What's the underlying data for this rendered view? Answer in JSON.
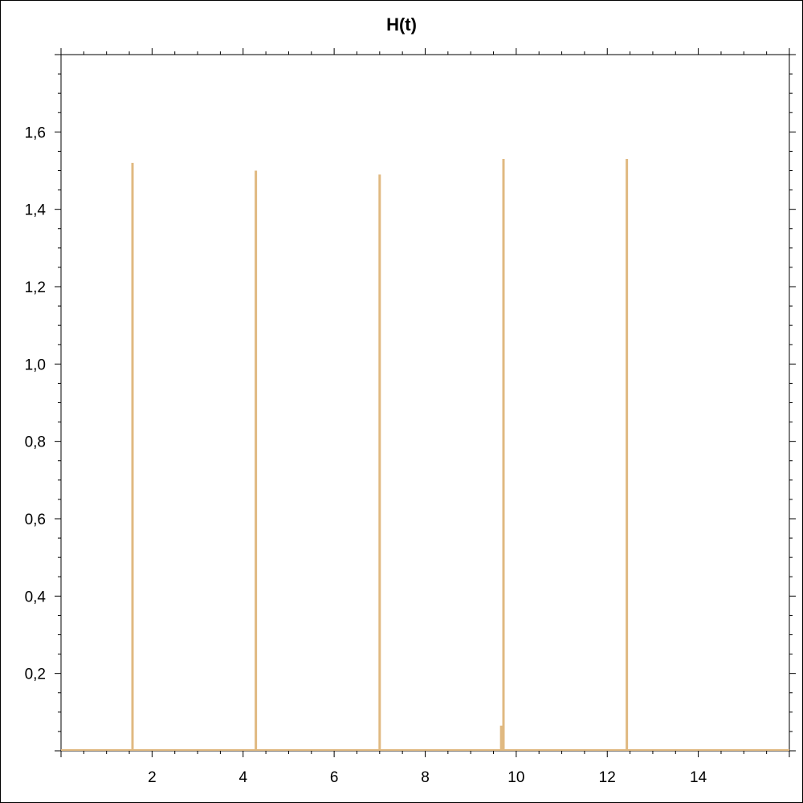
{
  "chart_data": {
    "type": "bar",
    "title": "H(t)",
    "xlabel": "",
    "ylabel": "",
    "xlim": [
      0,
      16
    ],
    "ylim": [
      0,
      1.8
    ],
    "x_ticks": [
      2,
      4,
      6,
      8,
      10,
      12,
      14
    ],
    "x_tick_labels": [
      "2",
      "4",
      "6",
      "8",
      "10",
      "12",
      "14"
    ],
    "y_ticks": [
      0.2,
      0.4,
      0.6,
      0.8,
      1.0,
      1.2,
      1.4,
      1.6
    ],
    "y_tick_labels": [
      "0,2",
      "0,4",
      "0,6",
      "0,8",
      "1,0",
      "1,2",
      "1,4",
      "1,6"
    ],
    "grid": false,
    "bar_color": "#e0b981",
    "points": [
      {
        "x": 1.57,
        "y": 1.52
      },
      {
        "x": 4.28,
        "y": 1.5
      },
      {
        "x": 7.0,
        "y": 1.49
      },
      {
        "x": 9.67,
        "y": 0.065
      },
      {
        "x": 9.72,
        "y": 1.53
      },
      {
        "x": 12.43,
        "y": 1.53
      }
    ]
  }
}
